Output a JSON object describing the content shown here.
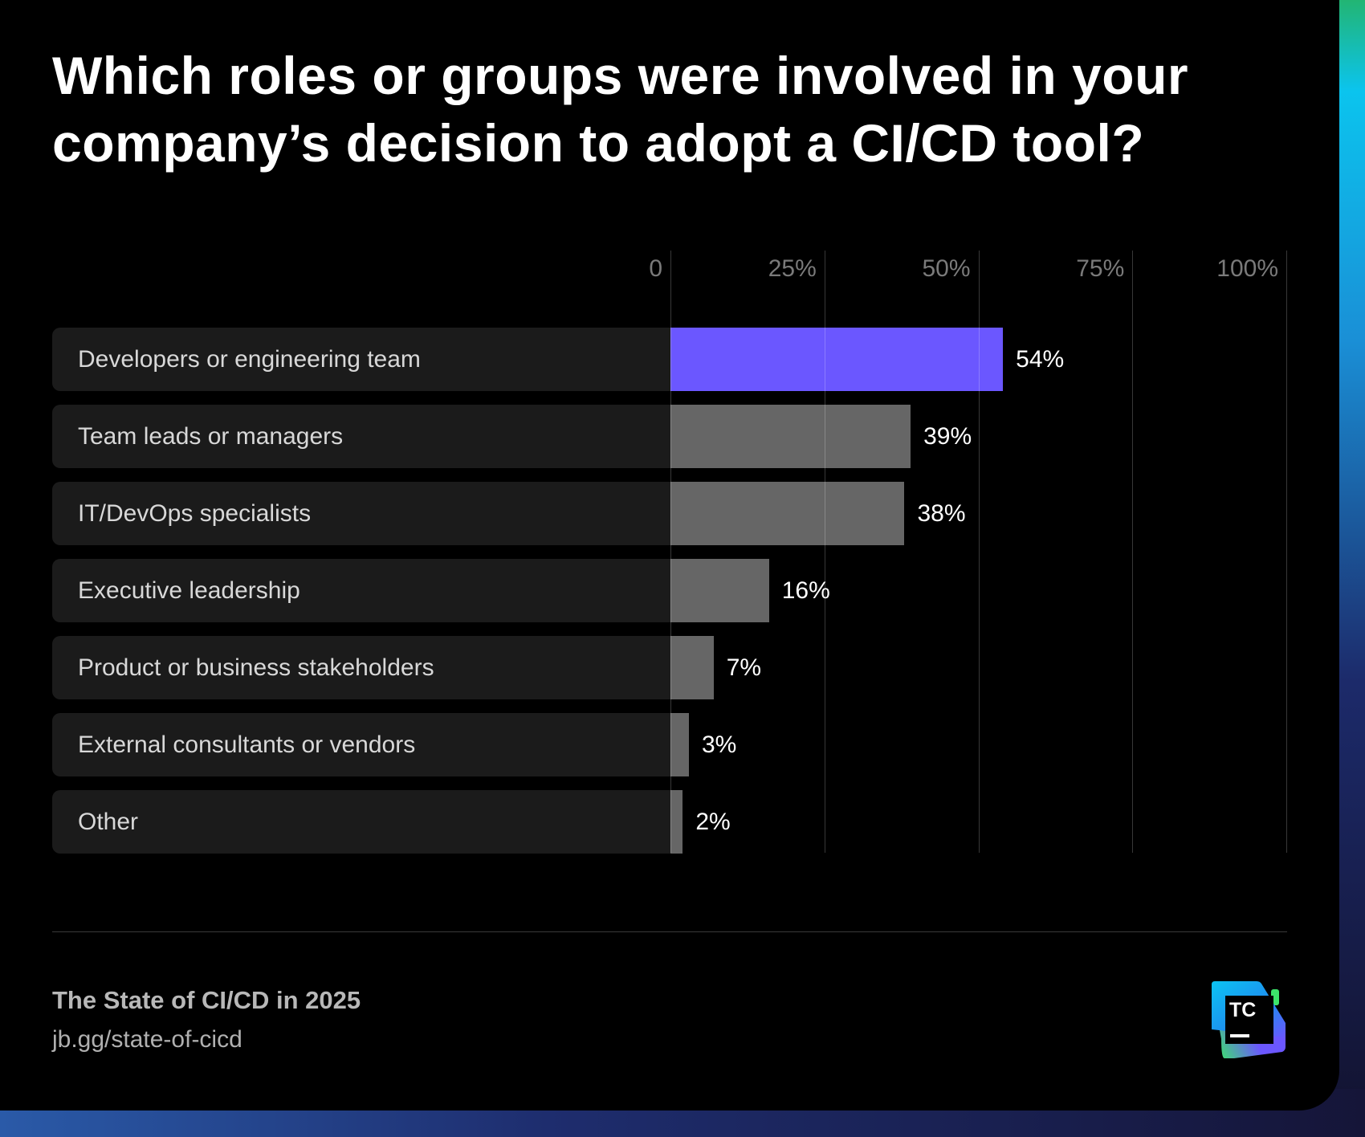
{
  "chart_data": {
    "type": "bar",
    "orientation": "horizontal",
    "title": "Which roles or groups were involved in your company’s decision to adopt a CI/CD tool?",
    "categories": [
      "Developers or engineering team",
      "Team leads or managers",
      "IT/DevOps specialists",
      "Executive leadership",
      "Product or business stakeholders",
      "External consultants or vendors",
      "Other"
    ],
    "values": [
      54,
      39,
      38,
      16,
      7,
      3,
      2
    ],
    "value_labels": [
      "54%",
      "39%",
      "38%",
      "16%",
      "7%",
      "3%",
      "2%"
    ],
    "xlim": [
      0,
      100
    ],
    "x_ticks": [
      0,
      25,
      50,
      75,
      100
    ],
    "x_tick_labels": [
      "0",
      "25%",
      "50%",
      "75%",
      "100%"
    ],
    "grid": true,
    "colors": {
      "highlight": "#6b57ff",
      "default": "#666666"
    }
  },
  "footer": {
    "source": "The State of CI/CD in 2025",
    "url": "jb.gg/state-of-cicd",
    "logo_text": "TC"
  }
}
